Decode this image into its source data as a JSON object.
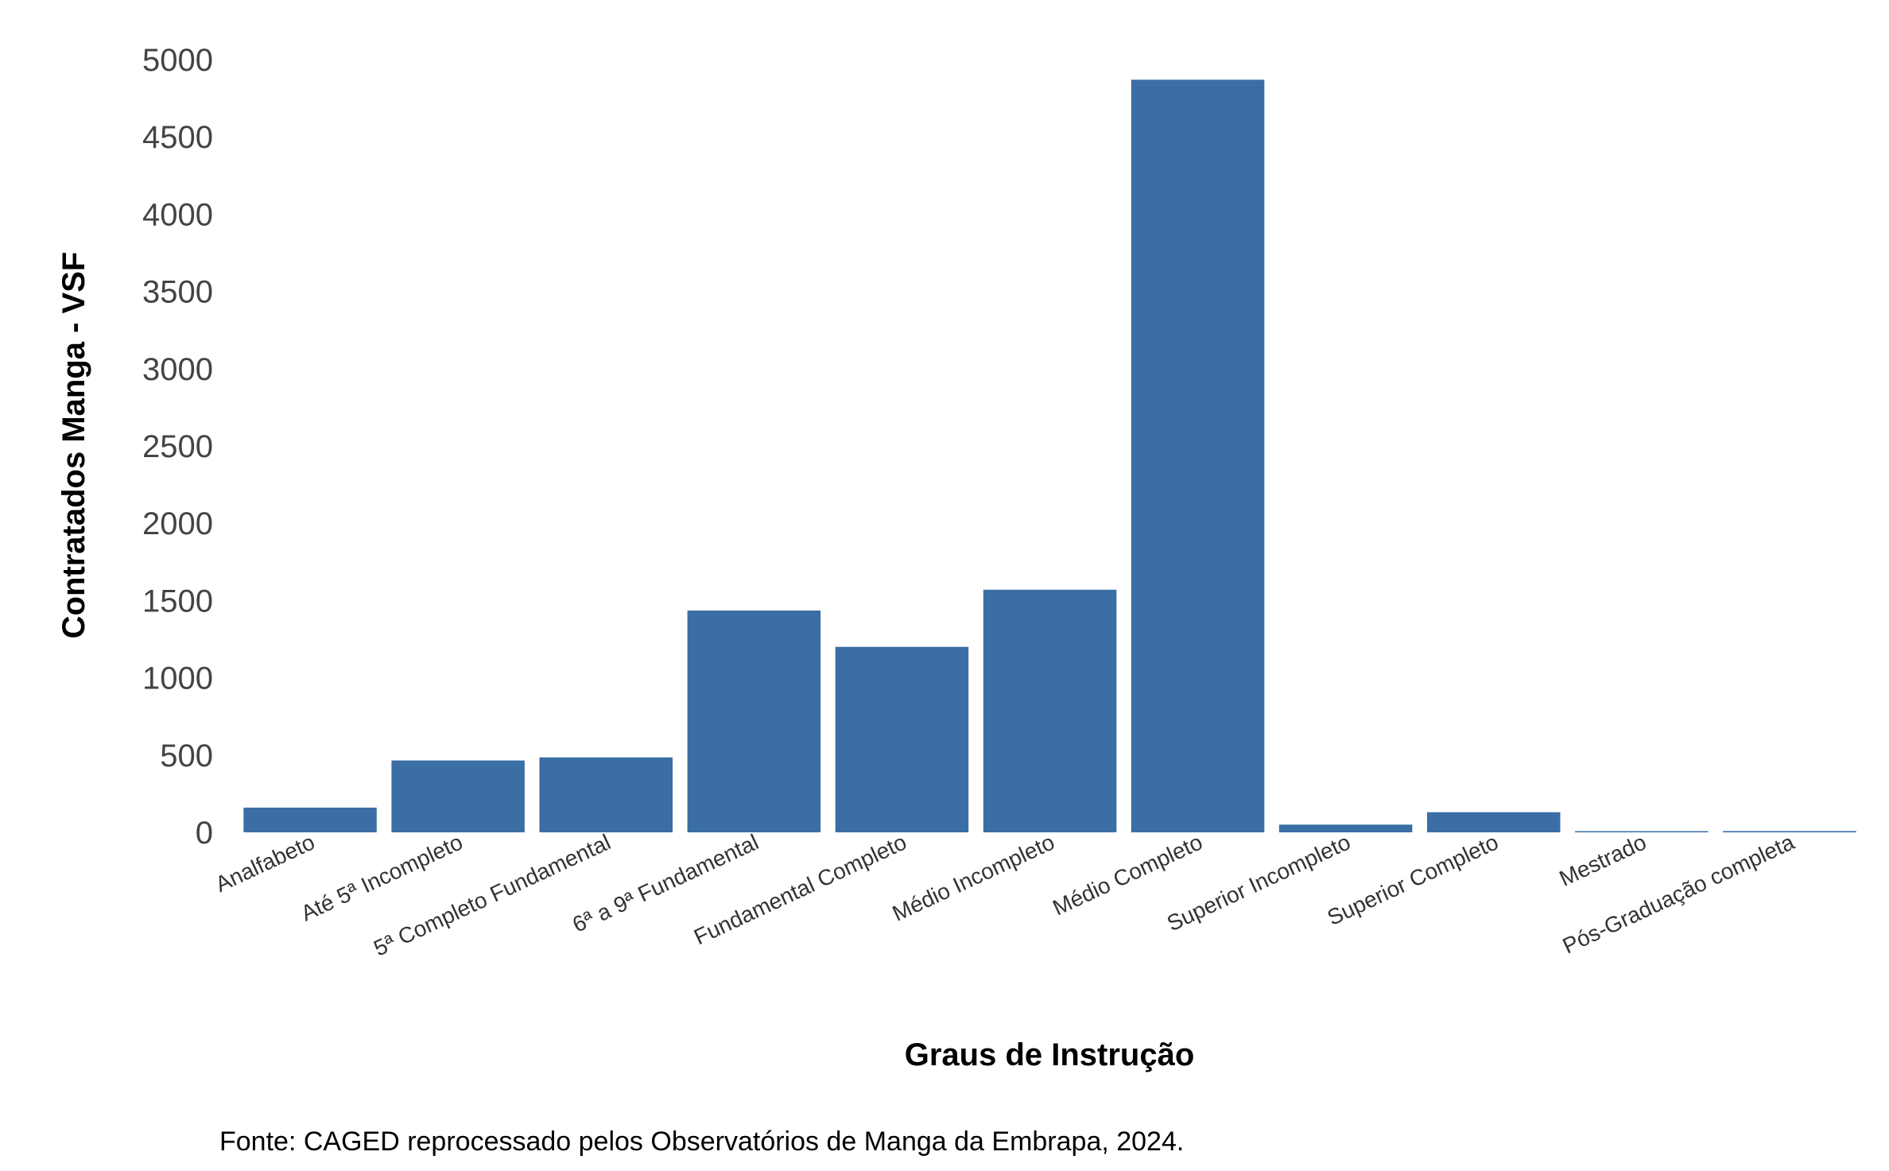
{
  "chart_data": {
    "type": "bar",
    "categories": [
      "Analfabeto",
      "Até 5ª Incompleto",
      "5ª Completo Fundamental",
      "6ª a 9ª Fundamental",
      "Fundamental Completo",
      "Médio Incompleto",
      "Médio Completo",
      "Superior Incompleto",
      "Superior Completo",
      "Mestrado",
      "Pós-Graduação completa"
    ],
    "values": [
      160,
      465,
      485,
      1435,
      1200,
      1570,
      4870,
      50,
      130,
      3,
      8
    ],
    "xlabel": "Graus de Instrução",
    "ylabel": "Contratados Manga - VSF",
    "ylim": [
      0,
      5000
    ],
    "yticks": [
      0,
      500,
      1000,
      1500,
      2000,
      2500,
      3000,
      3500,
      4000,
      4500,
      5000
    ],
    "caption": "Fonte: CAGED reprocessado pelos Observatórios de Manga da Embrapa, 2024.",
    "grid": false,
    "legend": "none",
    "colors": {
      "bar": "#3A6EA5"
    }
  }
}
